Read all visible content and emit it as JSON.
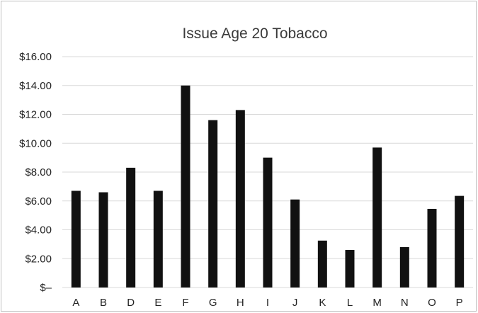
{
  "chart_data": {
    "type": "bar",
    "title": "Issue Age 20 Tobacco",
    "xlabel": "",
    "ylabel": "",
    "categories": [
      "A",
      "B",
      "D",
      "E",
      "F",
      "G",
      "H",
      "I",
      "J",
      "K",
      "L",
      "M",
      "N",
      "O",
      "P"
    ],
    "values": [
      6.7,
      6.6,
      8.3,
      6.7,
      14.0,
      11.6,
      12.3,
      9.0,
      6.1,
      3.25,
      2.6,
      9.7,
      2.8,
      5.45,
      6.35
    ],
    "ylim": [
      0,
      16
    ],
    "y_ticks": [
      {
        "value": 16,
        "label": "$16.00"
      },
      {
        "value": 14,
        "label": "$14.00"
      },
      {
        "value": 12,
        "label": "$12.00"
      },
      {
        "value": 10,
        "label": "$10.00"
      },
      {
        "value": 8,
        "label": "$8.00"
      },
      {
        "value": 6,
        "label": "$6.00"
      },
      {
        "value": 4,
        "label": "$4.00"
      },
      {
        "value": 2,
        "label": "$2.00"
      },
      {
        "value": 0,
        "label": "$–"
      }
    ],
    "grid": true,
    "legend": "none",
    "bar_color": "#111111"
  }
}
